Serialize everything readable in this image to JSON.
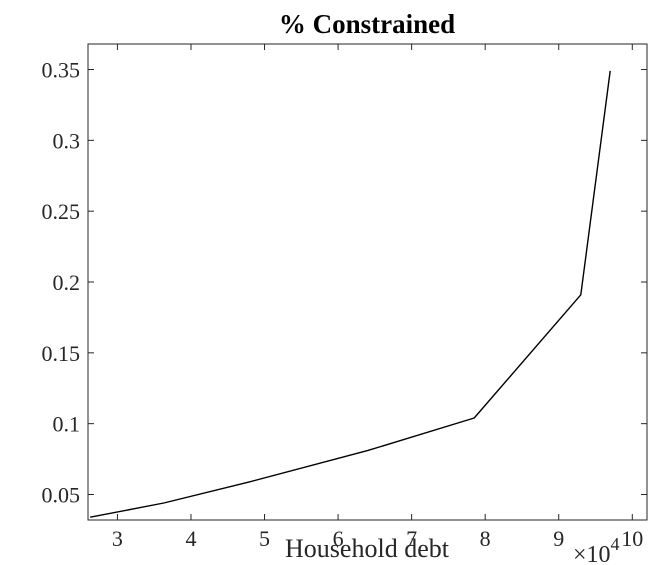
{
  "chart_data": {
    "type": "line",
    "title": "% Constrained",
    "xlabel": "Household debt",
    "ylabel": "",
    "x_exponent_label": "×10",
    "x_exponent": "4",
    "xlim": [
      2.6,
      10.2
    ],
    "ylim": [
      0.032,
      0.368
    ],
    "grid": false,
    "xticks": [
      3,
      4,
      5,
      6,
      7,
      8,
      9,
      10
    ],
    "xtick_labels": [
      "3",
      "4",
      "5",
      "6",
      "7",
      "8",
      "9",
      "10"
    ],
    "yticks": [
      0.05,
      0.1,
      0.15,
      0.2,
      0.25,
      0.3,
      0.35
    ],
    "ytick_labels": [
      "0.05",
      "0.1",
      "0.15",
      "0.2",
      "0.25",
      "0.3",
      "0.35"
    ],
    "series": [
      {
        "x": [
          2.63,
          3.63,
          4.8,
          6.4,
          7.85,
          9.3,
          9.7
        ],
        "y": [
          0.034,
          0.044,
          0.059,
          0.081,
          0.104,
          0.191,
          0.349
        ]
      }
    ],
    "colors": {
      "line": "#000000",
      "axes": "#262626",
      "background": "#ffffff"
    }
  }
}
